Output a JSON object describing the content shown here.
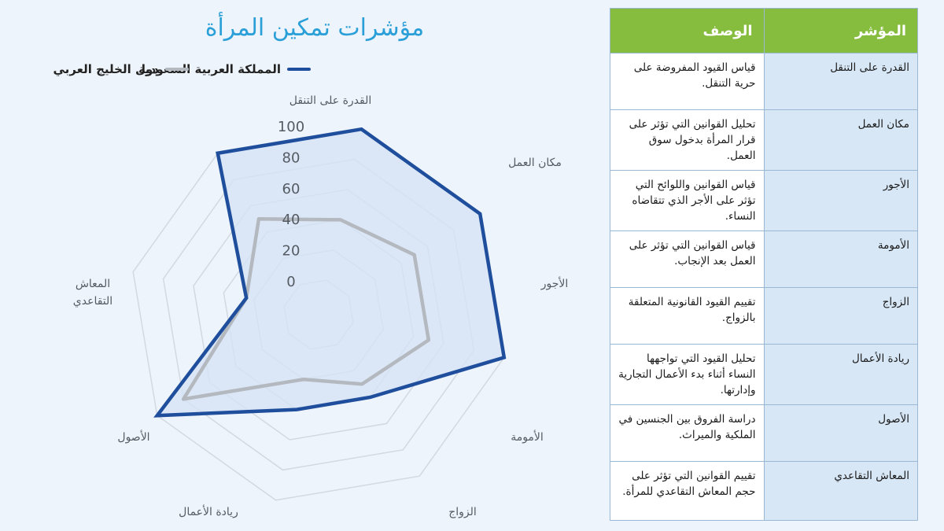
{
  "chart_data": {
    "type": "radar",
    "title": "مؤشرات تمكين المرأة",
    "axes": [
      "القدرة على التنقل",
      "مكان العمل",
      "الأجور",
      "الأمومة",
      "الزواج",
      "ريادة الأعمال",
      "الأصول",
      "المعاش التقاعدي"
    ],
    "ticks": [
      "0",
      "20",
      "40",
      "60",
      "80",
      "100"
    ],
    "rlim": [
      0,
      100
    ],
    "grid": true,
    "legend_position": "top",
    "series": [
      {
        "name": "المملكة العربية السعودية",
        "color": "#1f4e9c",
        "fill": "#d4e3f6",
        "values": [
          100,
          100,
          100,
          40,
          40,
          100,
          25,
          100
        ]
      },
      {
        "name": "دول الخليج العربي",
        "color": "#b4b8bf",
        "values": [
          40,
          50,
          50,
          30,
          20,
          80,
          25,
          50
        ]
      }
    ]
  },
  "table": {
    "headers": {
      "indicator": "المؤشر",
      "description": "الوصف"
    },
    "rows": [
      {
        "indicator": "القدرة على التنقل",
        "description": "قياس القيود المفروضة على حرية التنقل."
      },
      {
        "indicator": "مكان العمل",
        "description": "تحليل القوانين التي تؤثر على قرار المرأة بدخول سوق العمل."
      },
      {
        "indicator": "الأجور",
        "description": "قياس القوانين واللوائح التي تؤثر على الأجر الذي تتقاضاه النساء."
      },
      {
        "indicator": "الأمومة",
        "description": "قياس القوانين التي تؤثر على العمل بعد الإنجاب."
      },
      {
        "indicator": "الزواج",
        "description": "تقييم القيود القانونية المتعلقة بالزواج."
      },
      {
        "indicator": "ريادة الأعمال",
        "description": "تحليل القيود التي تواجهها النساء أثناء بدء الأعمال التجارية وإدارتها."
      },
      {
        "indicator": "الأصول",
        "description": "دراسة الفروق بين الجنسين في الملكية والميراث."
      },
      {
        "indicator": "المعاش التقاعدي",
        "description": "تقييم القوانين التي تؤثر على حجم المعاش التقاعدي للمرأة."
      }
    ]
  }
}
